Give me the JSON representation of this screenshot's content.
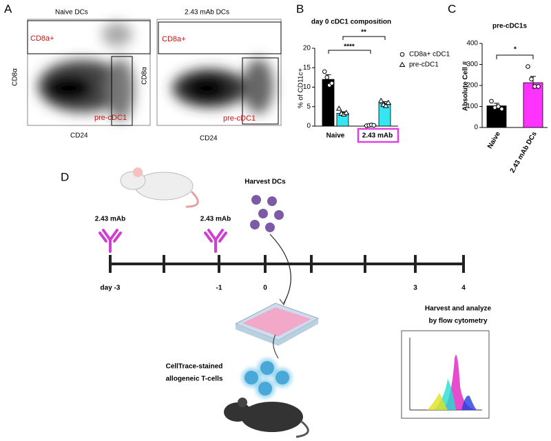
{
  "panel_labels": [
    "A",
    "B",
    "C",
    "D"
  ],
  "flow_plots": [
    {
      "title": "Naive DCs",
      "gates": [
        "CD8a+",
        "pre-cDC1"
      ],
      "xlabel": "CD24",
      "ylabel": "CD8α"
    },
    {
      "title": "2.43 mAb DCs",
      "gates": [
        "CD8a+",
        "pre-cDC1"
      ],
      "xlabel": "CD24",
      "ylabel": "CD8α"
    }
  ],
  "chart_data": [
    {
      "type": "bar",
      "title": "day 0 cDC1 composition",
      "ylabel": "% of CD11c+",
      "categories": [
        "Naive",
        "2.43 mAb"
      ],
      "series": [
        {
          "name": "CD8a+ cDC1",
          "color": "#000000",
          "marker": "circle",
          "values": [
            12,
            0.2
          ],
          "errors": [
            1.2,
            0.1
          ],
          "points": [
            [
              14,
              12.5,
              10.5,
              11
            ],
            [
              0.1,
              0.2,
              0.3,
              0.2
            ]
          ]
        },
        {
          "name": "pre-cDC1",
          "color": "#33e6f0",
          "marker": "triangle",
          "values": [
            3.3,
            5.8
          ],
          "errors": [
            0.4,
            0.5
          ],
          "points": [
            [
              4.5,
              3.2,
              3,
              3.4
            ],
            [
              6.5,
              5.5,
              5.2,
              6
            ]
          ]
        }
      ],
      "ylim": [
        0,
        20
      ],
      "yticks": [
        0,
        5,
        10,
        15,
        20
      ],
      "annotations": [
        "****",
        "**"
      ]
    },
    {
      "type": "bar",
      "title": "pre-cDC1s",
      "ylabel": "Absolute Cell #",
      "categories": [
        "Naive",
        "2.43 mAb DCs"
      ],
      "colors": [
        "#000000",
        "#ff33ff"
      ],
      "values": [
        103,
        213
      ],
      "errors": [
        12,
        30
      ],
      "points": [
        [
          125,
          95,
          100,
          88
        ],
        [
          290,
          230,
          195,
          195
        ]
      ],
      "ylim": [
        0,
        400
      ],
      "yticks": [
        0,
        100,
        200,
        300,
        400
      ],
      "annotations": [
        "*"
      ]
    }
  ],
  "timeline": {
    "days": [
      "day -3",
      "-1",
      "0",
      "3",
      "4"
    ],
    "doses": [
      "2.43 mAb",
      "2.43 mAb"
    ],
    "harvest": "Harvest DCs",
    "cells": [
      "CellTrace-stained",
      "allogeneic T-cells"
    ],
    "analyze": [
      "Harvest and analyze",
      "by flow cytometry"
    ]
  }
}
